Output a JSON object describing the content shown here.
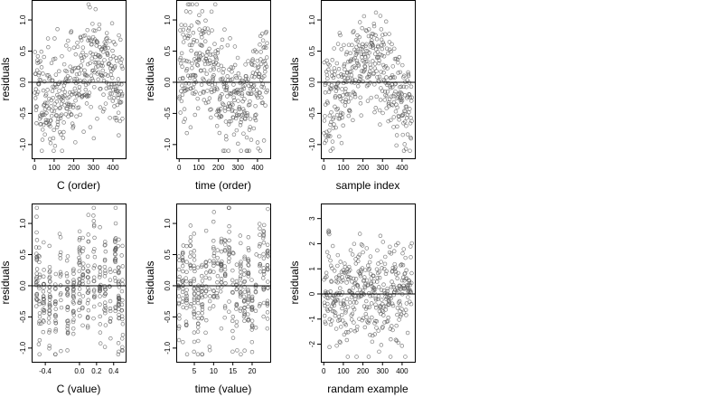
{
  "chart_data": [
    {
      "type": "scatter",
      "xlabel": "C (order)",
      "ylabel": "residuals",
      "xticks": [
        0,
        100,
        200,
        300,
        400
      ],
      "yticks": [
        -1.0,
        -0.5,
        0.0,
        0.5,
        1.0
      ],
      "xlim": [
        -15,
        465
      ],
      "ylim": [
        -1.22,
        1.32
      ],
      "hline": 0,
      "point_color": "#555555",
      "points": {
        "generator": "order",
        "n": 400,
        "xmin": 1,
        "xmax": 450,
        "seed": 11,
        "amp": 0.3,
        "sd": 0.42,
        "min": -1.1,
        "max": 1.25
      }
    },
    {
      "type": "scatter",
      "xlabel": "time (order)",
      "ylabel": "residuals",
      "xticks": [
        0,
        100,
        200,
        300,
        400
      ],
      "yticks": [
        -1.0,
        -0.5,
        0.0,
        0.5,
        1.0
      ],
      "xlim": [
        -15,
        465
      ],
      "ylim": [
        -1.22,
        1.32
      ],
      "hline": 0,
      "point_color": "#555555",
      "points": {
        "generator": "order",
        "n": 400,
        "xmin": 1,
        "xmax": 450,
        "seed": 23,
        "amp": 0.35,
        "sd": 0.42,
        "min": -1.1,
        "max": 1.25
      }
    },
    {
      "type": "scatter",
      "xlabel": "sample index",
      "ylabel": "residuals",
      "xticks": [
        0,
        100,
        200,
        300,
        400
      ],
      "yticks": [
        -1.0,
        -0.5,
        0.0,
        0.5,
        1.0
      ],
      "xlim": [
        -15,
        465
      ],
      "ylim": [
        -1.22,
        1.32
      ],
      "hline": 0,
      "point_color": "#555555",
      "points": {
        "generator": "order",
        "n": 400,
        "xmin": 1,
        "xmax": 450,
        "seed": 37,
        "amp": 0.4,
        "sd": 0.38,
        "min": -1.1,
        "max": 1.25
      }
    },
    {
      "type": "scatter",
      "xlabel": "C (value)",
      "ylabel": "residuals",
      "xticks": [
        -0.4,
        0.0,
        0.2,
        0.4
      ],
      "yticks": [
        -1.0,
        -0.5,
        0.0,
        0.5,
        1.0
      ],
      "xlim": [
        -0.56,
        0.54
      ],
      "ylim": [
        -1.22,
        1.32
      ],
      "hline": 0,
      "point_color": "#555555",
      "points": {
        "generator": "columns",
        "n": 400,
        "levels": [
          -0.5,
          -0.47,
          -0.42,
          -0.35,
          -0.28,
          -0.22,
          -0.14,
          -0.07,
          0.0,
          0.04,
          0.1,
          0.17,
          0.24,
          0.3,
          0.36,
          0.42,
          0.46,
          0.5
        ],
        "jitter": 0.004,
        "seed": 51,
        "sd": 0.45,
        "min": -1.1,
        "max": 1.25
      }
    },
    {
      "type": "scatter",
      "xlabel": "time (value)",
      "ylabel": "residuals",
      "xticks": [
        5,
        10,
        15,
        20
      ],
      "yticks": [
        -1.0,
        -0.5,
        0.0,
        0.5,
        1.0
      ],
      "xlim": [
        0.3,
        24.7
      ],
      "ylim": [
        -1.22,
        1.32
      ],
      "hline": 0,
      "point_color": "#555555",
      "points": {
        "generator": "columns",
        "n": 400,
        "levels": [
          1,
          2,
          3,
          4,
          5,
          6,
          7,
          8,
          9,
          10,
          11,
          12,
          13,
          14,
          15,
          16,
          17,
          18,
          19,
          20,
          21,
          22,
          23,
          24
        ],
        "jitter": 0.06,
        "seed": 67,
        "sd": 0.42,
        "min": -1.1,
        "max": 1.25
      }
    },
    {
      "type": "scatter",
      "xlabel": "randam example",
      "ylabel": "residuals",
      "xticks": [
        0,
        100,
        200,
        300,
        400
      ],
      "yticks": [
        -2,
        -1,
        0,
        1,
        2,
        3
      ],
      "xlim": [
        -15,
        465
      ],
      "ylim": [
        -2.7,
        3.6
      ],
      "hline": 0,
      "point_color": "#555555",
      "points": {
        "generator": "order",
        "n": 400,
        "xmin": 1,
        "xmax": 450,
        "seed": 83,
        "amp": 0.0,
        "sd": 1.0,
        "min": -2.5,
        "max": 3.3
      }
    }
  ]
}
